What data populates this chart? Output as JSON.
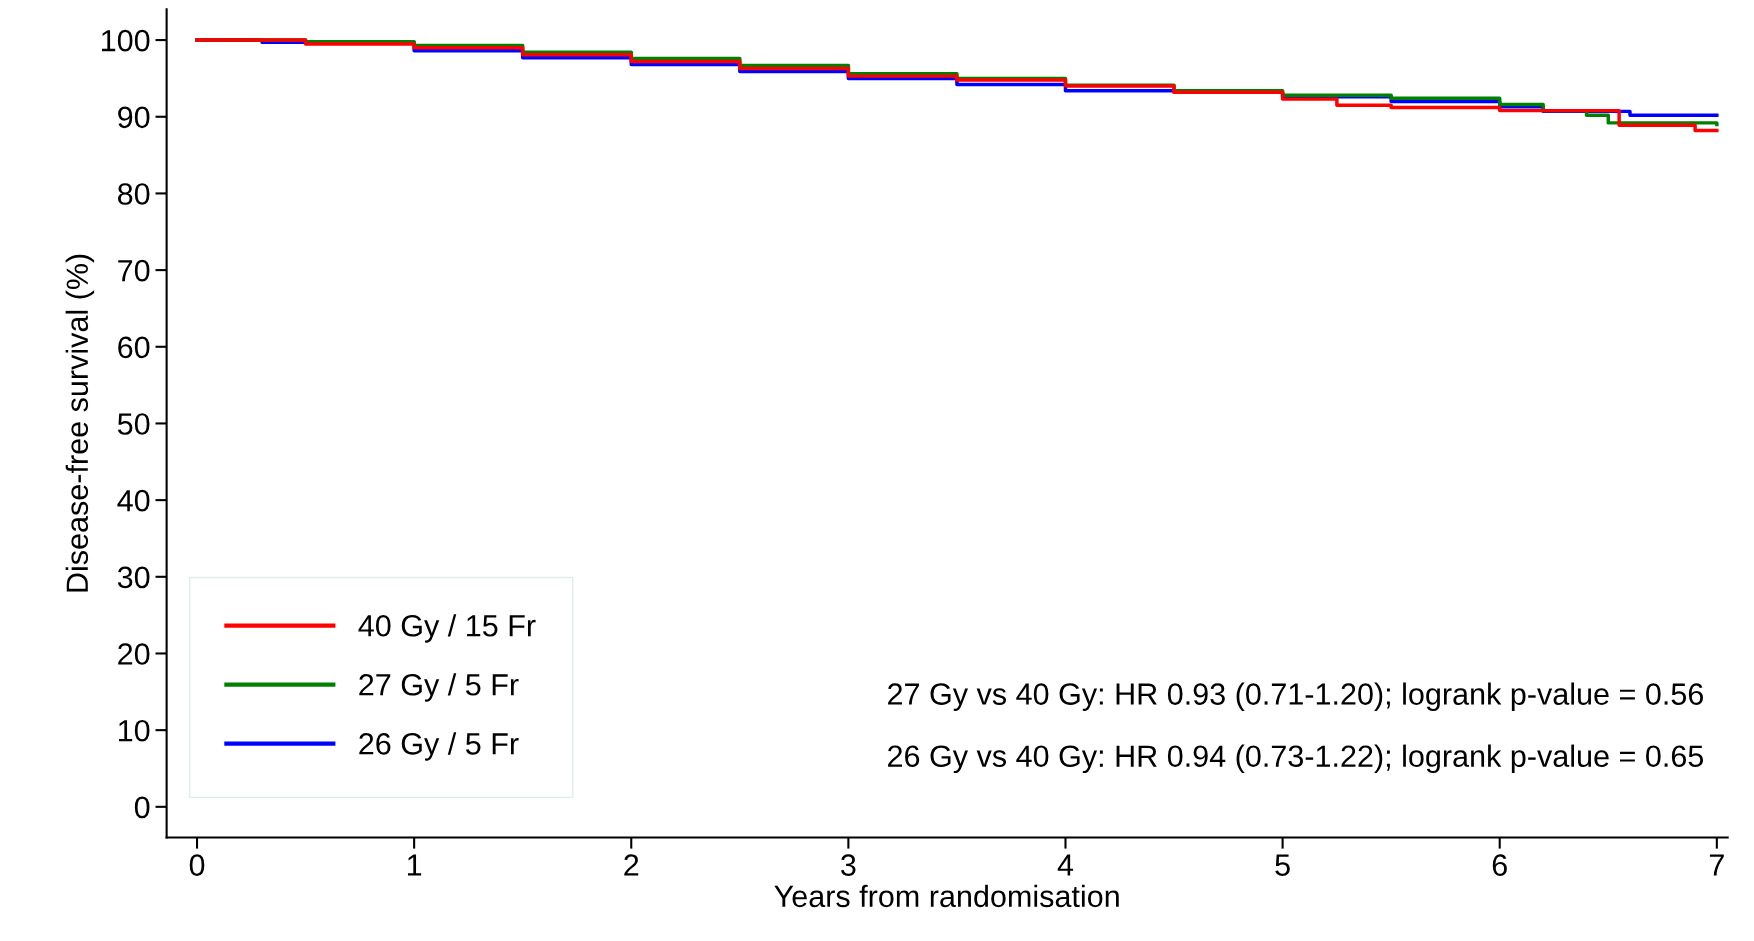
{
  "chart_data": {
    "type": "step",
    "xlabel": "Years from randomisation",
    "ylabel": "Disease-free survival (%)",
    "xlim": [
      -0.14,
      7.05
    ],
    "ylim": [
      -4,
      104
    ],
    "xticks": [
      0,
      1,
      2,
      3,
      4,
      5,
      6,
      7
    ],
    "yticks": [
      0,
      10,
      20,
      30,
      40,
      50,
      60,
      70,
      80,
      90,
      100
    ],
    "grid": false,
    "legend": "bottom left",
    "series": [
      {
        "name": "40 Gy / 15 Fr",
        "color": "#ff0000",
        "x": [
          0,
          0.5,
          1,
          1.5,
          2,
          2.5,
          3,
          3.5,
          4,
          4.5,
          5,
          5.25,
          5.5,
          6,
          6.5,
          6.55,
          6.9,
          7
        ],
        "values": [
          100,
          99.5,
          99.0,
          98.1,
          97.2,
          96.3,
          95.3,
          94.8,
          94,
          93.2,
          92.3,
          91.5,
          91.2,
          90.8,
          90.8,
          88.9,
          88.2,
          88.2
        ]
      },
      {
        "name": "27 Gy / 5 Fr",
        "color": "#008000",
        "x": [
          0,
          0.5,
          1,
          1.5,
          2,
          2.5,
          3,
          3.5,
          4,
          4.5,
          5,
          5.5,
          6,
          6.2,
          6.4,
          6.5,
          7
        ],
        "values": [
          100,
          99.8,
          99.3,
          98.4,
          97.6,
          96.7,
          95.6,
          95,
          94.1,
          93.4,
          92.8,
          92.4,
          91.6,
          90.8,
          90.2,
          89.2,
          89
        ]
      },
      {
        "name": "26 Gy / 5 Fr",
        "color": "#0000ff",
        "x": [
          0,
          0.3,
          1,
          1.5,
          2,
          2.5,
          3,
          3.5,
          4,
          4.5,
          5,
          5.5,
          6,
          6.2,
          6.6,
          7
        ],
        "values": [
          100,
          99.7,
          98.6,
          97.7,
          96.8,
          95.9,
          95,
          94.2,
          93.4,
          93.2,
          92.6,
          92,
          91.3,
          90.7,
          90.2,
          90.2
        ]
      }
    ],
    "annotations": [
      "27 Gy vs 40 Gy: HR 0.93 (0.71-1.20); logrank p-value = 0.56",
      "26 Gy vs 40 Gy: HR 0.94 (0.73-1.22); logrank p-value = 0.65"
    ]
  }
}
